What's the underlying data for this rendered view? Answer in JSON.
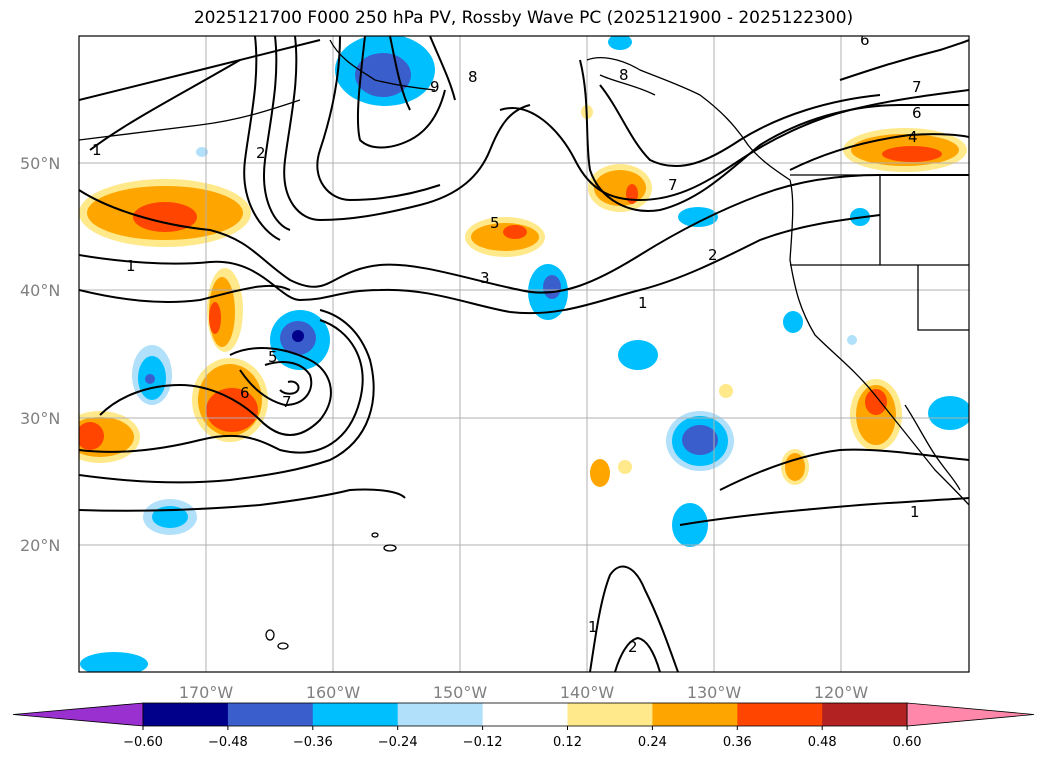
{
  "title": "2025121700 F000 250 hPa PV, Rossby Wave PC (2025121900 - 2025122300)",
  "map": {
    "lon_range": [
      -180,
      -110
    ],
    "lat_range": [
      10,
      60
    ],
    "grid_lons": [
      -170,
      -160,
      -150,
      -140,
      -130,
      -120
    ],
    "grid_lats": [
      20,
      30,
      40,
      50
    ],
    "lat_labels": [
      "20°N",
      "30°N",
      "40°N",
      "50°N"
    ],
    "lon_labels": [
      "170°W",
      "160°W",
      "150°W",
      "140°W",
      "130°W",
      "120°W"
    ]
  },
  "contour_labels": [
    "1",
    "2",
    "1",
    "3",
    "6",
    "7",
    "5",
    "9",
    "8",
    "8",
    "6",
    "4",
    "7",
    "2",
    "1",
    "1",
    "1",
    "2",
    "7",
    "6",
    "5"
  ],
  "colorbar": {
    "ticks": [
      "−0.60",
      "−0.48",
      "−0.36",
      "−0.24",
      "−0.12",
      "0.12",
      "0.24",
      "0.36",
      "0.48",
      "0.60"
    ],
    "colors": [
      "#9b30d0",
      "#00008b",
      "#3a5fcd",
      "#00bfff",
      "#b0e0fa",
      "#ffffff",
      "#ffe98a",
      "#ffa500",
      "#ff4500",
      "#b22222",
      "#ff88aa"
    ]
  }
}
